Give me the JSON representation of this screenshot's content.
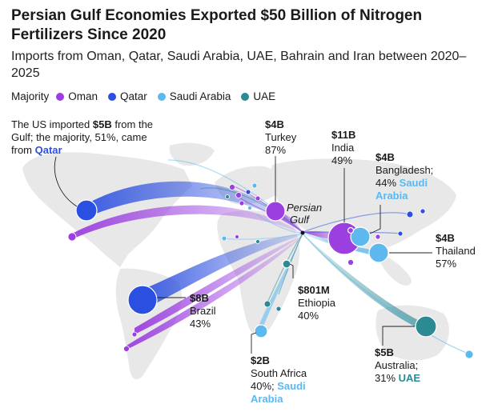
{
  "title": "Persian Gulf Economies Exported $50 Billion of Nitrogen Fertilizers Since 2020",
  "subtitle": "Imports from Oman, Qatar, Saudi Arabia, UAE, Bahrain and Iran between 2020–2025",
  "legend": {
    "label": "Majority",
    "items": [
      {
        "name": "Oman",
        "color": "#9b3fe0"
      },
      {
        "name": "Qatar",
        "color": "#2b4fe0"
      },
      {
        "name": "Saudi Arabia",
        "color": "#5cb8ee"
      },
      {
        "name": "UAE",
        "color": "#2b8a94"
      }
    ]
  },
  "colors": {
    "oman": "#9b3fe0",
    "qatar": "#2b4fe0",
    "saudi": "#5cb8ee",
    "uae": "#2b8a94",
    "land": "#e8e8e8"
  },
  "origin_label": {
    "line1": "Persian",
    "line2": "Gulf"
  },
  "annotations": {
    "us": {
      "pre": "The US imported ",
      "value": "$5B",
      "mid": " from the Gulf; the majority, 51%, came from ",
      "highlight": "Qatar"
    },
    "turkey": {
      "value": "$4B",
      "name": "Turkey",
      "pct": "87%"
    },
    "india": {
      "value": "$11B",
      "name": "India",
      "pct": "49%"
    },
    "bangladesh": {
      "value": "$4B",
      "name": "Bangladesh;",
      "pct": "44%",
      "highlight": "Saudi Arabia"
    },
    "thailand": {
      "value": "$4B",
      "name": "Thailand",
      "pct": "57%"
    },
    "brazil": {
      "value": "$8B",
      "name": "Brazil",
      "pct": "43%"
    },
    "ethiopia": {
      "value": "$801M",
      "name": "Ethiopia",
      "pct": "40%"
    },
    "south_africa": {
      "value": "$2B",
      "name": "South Africa",
      "pct": "40%;",
      "highlight": "Saudi Arabia"
    },
    "australia": {
      "value": "$5B",
      "name": "Australia;",
      "pct": "31%",
      "highlight": "UAE"
    }
  }
}
